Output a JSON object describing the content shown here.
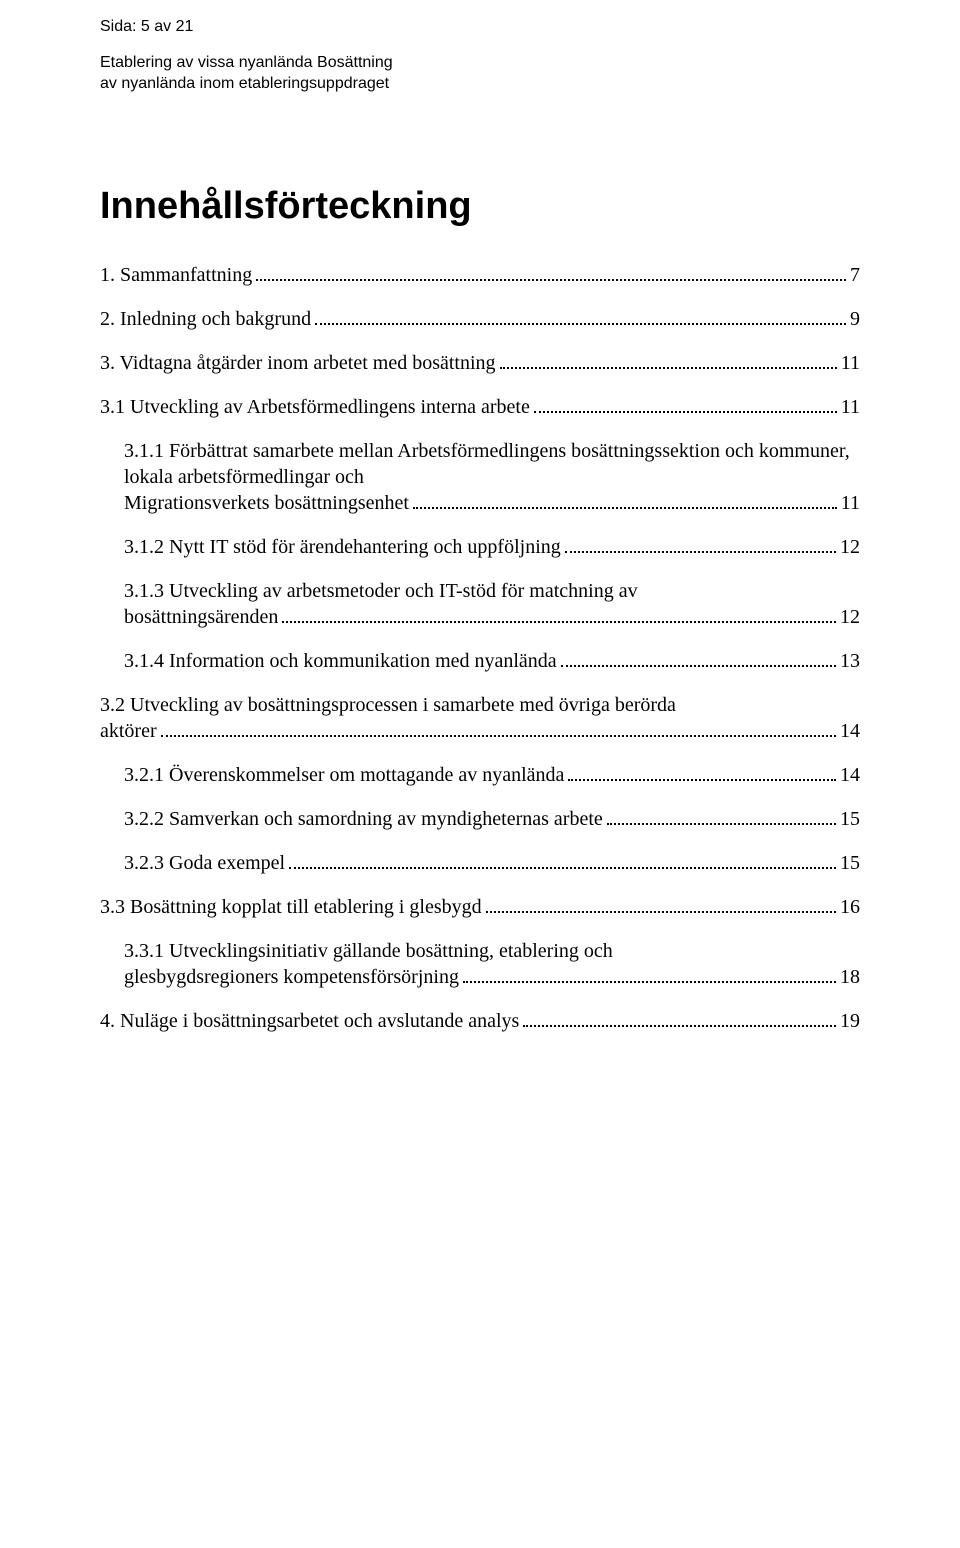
{
  "header": {
    "page_line": "Sida: 5 av 21",
    "doc_title_line1": "Etablering av vissa nyanlända Bosättning",
    "doc_title_line2": "av nyanlända inom etableringsuppdraget"
  },
  "title": "Innehållsförteckning",
  "toc": [
    {
      "level": 1,
      "label": "1. Sammanfattning",
      "page": "7"
    },
    {
      "level": 1,
      "label": "2. Inledning och bakgrund",
      "page": "9"
    },
    {
      "level": 1,
      "label": "3. Vidtagna åtgärder inom arbetet med bosättning",
      "page": "11"
    },
    {
      "level": 1,
      "label": "3.1 Utveckling av Arbetsförmedlingens interna arbete",
      "page": "11"
    },
    {
      "level": 2,
      "multiline": true,
      "label_head": "3.1.1 Förbättrat samarbete mellan Arbetsförmedlingens bosättningssektion och kommuner, lokala arbetsförmedlingar och",
      "label_tail": "Migrationsverkets bosättningsenhet",
      "page": "11"
    },
    {
      "level": 2,
      "label": "3.1.2 Nytt IT stöd för ärendehantering och uppföljning",
      "page": "12"
    },
    {
      "level": 2,
      "multiline": true,
      "label_head": "3.1.3 Utveckling av arbetsmetoder och IT-stöd för matchning av",
      "label_tail": "bosättningsärenden",
      "page": "12"
    },
    {
      "level": 2,
      "label": "3.1.4 Information och kommunikation med nyanlända",
      "page": "13"
    },
    {
      "level": 1,
      "multiline": true,
      "label_head": "3.2 Utveckling av bosättningsprocessen i samarbete med övriga berörda",
      "label_tail": "aktörer",
      "page": "14"
    },
    {
      "level": 2,
      "label": "3.2.1 Överenskommelser om mottagande av nyanlända",
      "page": "14"
    },
    {
      "level": 2,
      "label": "3.2.2 Samverkan och samordning av myndigheternas arbete",
      "page": "15"
    },
    {
      "level": 2,
      "label": "3.2.3 Goda exempel",
      "page": "15"
    },
    {
      "level": 1,
      "label": "3.3 Bosättning kopplat till etablering i glesbygd",
      "page": "16"
    },
    {
      "level": 2,
      "multiline": true,
      "label_head": "3.3.1 Utvecklingsinitiativ gällande bosättning, etablering och",
      "label_tail": "glesbygdsregioners kompetensförsörjning",
      "page": "18"
    },
    {
      "level": 1,
      "label": "4. Nuläge i bosättningsarbetet och avslutande analys",
      "page": "19"
    }
  ]
}
